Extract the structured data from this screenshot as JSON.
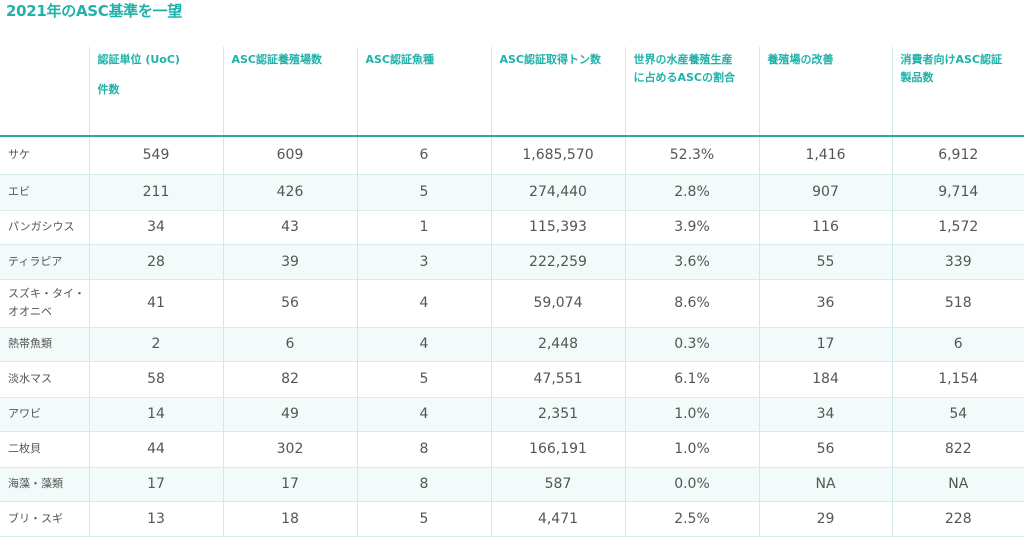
{
  "title": "2021年のASC基準を一望",
  "columns": [
    {
      "lines": [
        "認証単位 (UoC)",
        "件数"
      ],
      "spaced": true
    },
    {
      "lines": [
        "ASC認証養殖場数"
      ],
      "spaced": false
    },
    {
      "lines": [
        "ASC認証魚種"
      ],
      "spaced": false
    },
    {
      "lines": [
        "ASC認証取得トン数"
      ],
      "spaced": false
    },
    {
      "lines": [
        "世界の水産養殖生産",
        "に占めるASCの割合"
      ],
      "spaced": false
    },
    {
      "lines": [
        "養殖場の改善"
      ],
      "spaced": false
    },
    {
      "lines": [
        "消費者向けASC認証",
        "製品数"
      ],
      "spaced": false
    }
  ],
  "rows": [
    {
      "label": [
        "サケ"
      ],
      "values": [
        "549",
        "609",
        "6",
        "1,685,570",
        "52.3%",
        "1,416",
        "6,912"
      ]
    },
    {
      "label": [
        "エビ"
      ],
      "values": [
        "211",
        "426",
        "5",
        "274,440",
        "2.8%",
        "907",
        "9,714"
      ]
    },
    {
      "label": [
        "パンガシウス"
      ],
      "values": [
        "34",
        "43",
        "1",
        "115,393",
        "3.9%",
        "116",
        "1,572"
      ]
    },
    {
      "label": [
        "ティラピア"
      ],
      "values": [
        "28",
        "39",
        "3",
        "222,259",
        "3.6%",
        "55",
        "339"
      ]
    },
    {
      "label": [
        "スズキ・タイ・",
        "オオニベ"
      ],
      "values": [
        "41",
        "56",
        "4",
        "59,074",
        "8.6%",
        "36",
        "518"
      ]
    },
    {
      "label": [
        "熱帯魚類"
      ],
      "values": [
        "2",
        "6",
        "4",
        "2,448",
        "0.3%",
        "17",
        "6"
      ]
    },
    {
      "label": [
        "淡水マス"
      ],
      "values": [
        "58",
        "82",
        "5",
        "47,551",
        "6.1%",
        "184",
        "1,154"
      ]
    },
    {
      "label": [
        "アワビ"
      ],
      "values": [
        "14",
        "49",
        "4",
        "2,351",
        "1.0%",
        "34",
        "54"
      ]
    },
    {
      "label": [
        "二枚貝"
      ],
      "values": [
        "44",
        "302",
        "8",
        "166,191",
        "1.0%",
        "56",
        "822"
      ]
    },
    {
      "label": [
        "海藻・藻類"
      ],
      "values": [
        "17",
        "17",
        "8",
        "587",
        "0.0%",
        "NA",
        "NA"
      ]
    },
    {
      "label": [
        "ブリ・スギ"
      ],
      "values": [
        "13",
        "18",
        "5",
        "4,471",
        "2.5%",
        "29",
        "228"
      ]
    }
  ]
}
